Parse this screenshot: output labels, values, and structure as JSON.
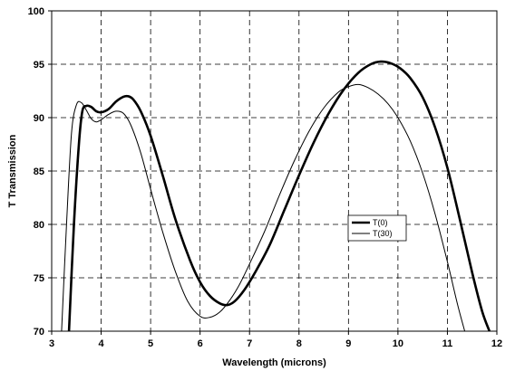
{
  "chart_data": {
    "type": "line",
    "title": "",
    "xlabel": "Wavelength (microns)",
    "ylabel": "T Transmission",
    "xlim": [
      3,
      12
    ],
    "ylim": [
      70,
      100
    ],
    "x_ticks": [
      3,
      4,
      5,
      6,
      7,
      8,
      9,
      10,
      11,
      12
    ],
    "y_ticks": [
      70,
      75,
      80,
      85,
      90,
      95,
      100
    ],
    "grid": true,
    "legend_position": "center-right",
    "series": [
      {
        "name": "T(0)",
        "color": "#000000",
        "style": "thick",
        "x": [
          3.35,
          3.45,
          3.55,
          3.62,
          3.7,
          3.8,
          3.9,
          4.0,
          4.15,
          4.3,
          4.45,
          4.55,
          4.65,
          4.8,
          5.0,
          5.25,
          5.5,
          5.8,
          6.0,
          6.2,
          6.4,
          6.55,
          6.7,
          6.9,
          7.1,
          7.4,
          7.7,
          8.0,
          8.3,
          8.6,
          8.9,
          9.2,
          9.45,
          9.65,
          9.85,
          10.05,
          10.25,
          10.5,
          10.75,
          11.0,
          11.25,
          11.5,
          11.7,
          11.85
        ],
        "y": [
          70,
          80,
          87.5,
          90.6,
          91.1,
          91.0,
          90.6,
          90.5,
          90.8,
          91.5,
          91.95,
          92.0,
          91.7,
          90.6,
          88.3,
          84.5,
          80.5,
          76.6,
          74.6,
          73.3,
          72.6,
          72.45,
          72.8,
          73.9,
          75.4,
          78.0,
          81.3,
          84.6,
          87.7,
          90.4,
          92.6,
          94.2,
          95.0,
          95.25,
          95.1,
          94.6,
          93.7,
          91.9,
          89.1,
          85.3,
          80.5,
          75.5,
          71.9,
          70
        ]
      },
      {
        "name": "T(30)",
        "color": "#000000",
        "style": "thin",
        "x": [
          3.2,
          3.3,
          3.4,
          3.5,
          3.6,
          3.7,
          3.8,
          3.9,
          4.0,
          4.15,
          4.3,
          4.45,
          4.6,
          4.8,
          5.0,
          5.25,
          5.5,
          5.75,
          6.0,
          6.2,
          6.4,
          6.6,
          6.8,
          7.0,
          7.3,
          7.6,
          7.9,
          8.2,
          8.5,
          8.8,
          9.0,
          9.2,
          9.4,
          9.6,
          9.8,
          10.0,
          10.25,
          10.5,
          10.75,
          11.0,
          11.2,
          11.35
        ],
        "y": [
          70,
          80,
          88.5,
          91.2,
          91.4,
          90.7,
          89.9,
          89.6,
          89.8,
          90.3,
          90.6,
          90.4,
          89.3,
          86.7,
          83.3,
          79.2,
          75.6,
          72.8,
          71.4,
          71.3,
          71.8,
          72.9,
          74.4,
          76.3,
          79.3,
          82.7,
          85.9,
          88.7,
          90.9,
          92.4,
          92.9,
          93.1,
          92.8,
          92.2,
          91.3,
          90.0,
          87.8,
          84.8,
          81.0,
          76.5,
          72.6,
          70
        ]
      }
    ]
  }
}
